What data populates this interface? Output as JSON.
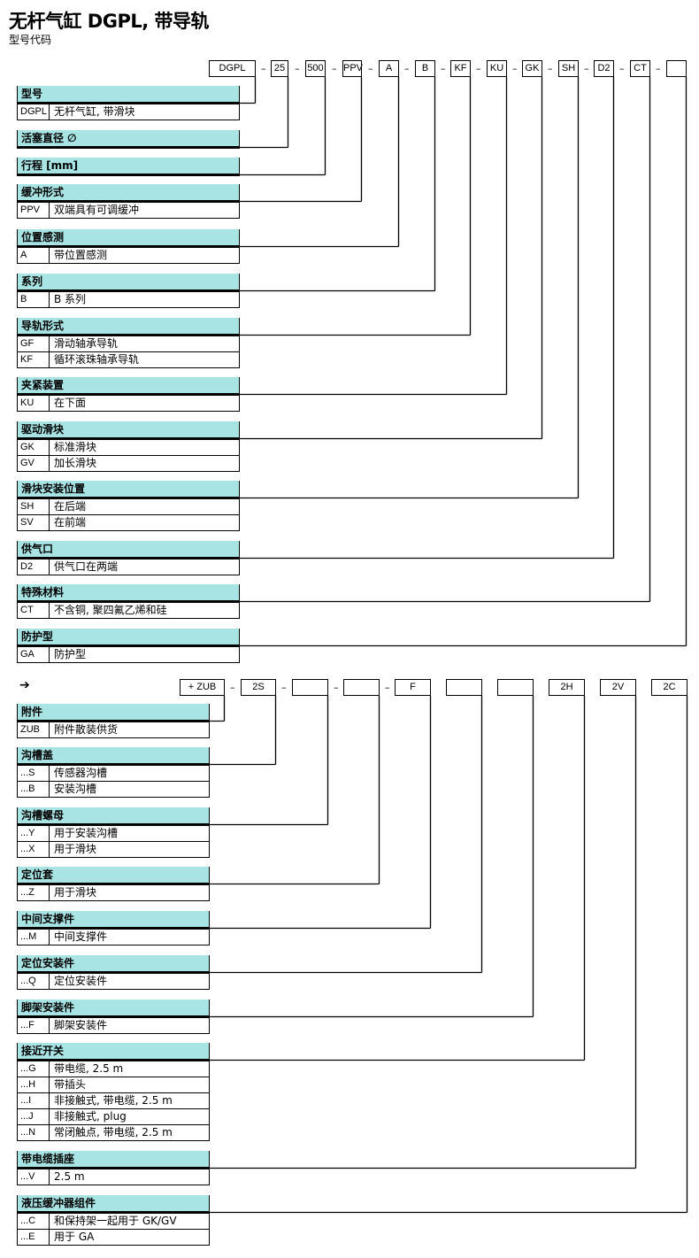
{
  "title": "无杆气缸 DGPL, 带导轨",
  "subtitle": "型号代码",
  "colors": {
    "header_bg": "#a8e4e4",
    "lines": "#000000"
  },
  "top": {
    "boxes": [
      "DGPL",
      "25",
      "500",
      "PPV",
      "A",
      "B",
      "KF",
      "KU",
      "GK",
      "SH",
      "D2",
      "CT",
      ""
    ],
    "separator": "–",
    "sections": [
      {
        "header": "型号",
        "rows": [
          {
            "code": "DGPL",
            "desc": "无杆气缸, 带滑块"
          }
        ]
      },
      {
        "header": "活塞直径 ∅",
        "rows": []
      },
      {
        "header": "行程 [mm]",
        "rows": []
      },
      {
        "header": "缓冲形式",
        "rows": [
          {
            "code": "PPV",
            "desc": "双端具有可调缓冲"
          }
        ]
      },
      {
        "header": "位置感测",
        "rows": [
          {
            "code": "A",
            "desc": "带位置感测"
          }
        ]
      },
      {
        "header": "系列",
        "rows": [
          {
            "code": "B",
            "desc": "B 系列"
          }
        ]
      },
      {
        "header": "导轨形式",
        "rows": [
          {
            "code": "GF",
            "desc": "滑动轴承导轨"
          },
          {
            "code": "KF",
            "desc": "循环滚珠轴承导轨"
          }
        ]
      },
      {
        "header": "夹紧装置",
        "rows": [
          {
            "code": "KU",
            "desc": "在下面"
          }
        ]
      },
      {
        "header": "驱动滑块",
        "rows": [
          {
            "code": "GK",
            "desc": "标准滑块"
          },
          {
            "code": "GV",
            "desc": "加长滑块"
          }
        ]
      },
      {
        "header": "滑块安装位置",
        "rows": [
          {
            "code": "SH",
            "desc": "在后端"
          },
          {
            "code": "SV",
            "desc": "在前端"
          }
        ]
      },
      {
        "header": "供气口",
        "rows": [
          {
            "code": "D2",
            "desc": "供气口在两端"
          }
        ]
      },
      {
        "header": "特殊材料",
        "rows": [
          {
            "code": "CT",
            "desc": "不含铜, 聚四氟乙烯和硅"
          }
        ]
      },
      {
        "header": "防护型",
        "rows": [
          {
            "code": "GA",
            "desc": "防护型"
          }
        ]
      }
    ]
  },
  "bottom": {
    "arrow_icon": "➔",
    "boxes": [
      "+ ZUB",
      "2S",
      "",
      "",
      "F",
      "",
      "",
      "2H",
      "2V",
      "2C"
    ],
    "separator": "–",
    "sections": [
      {
        "header": "附件",
        "rows": [
          {
            "code": "ZUB",
            "desc": "附件散装供货"
          }
        ]
      },
      {
        "header": "沟槽盖",
        "rows": [
          {
            "code": "...S",
            "desc": "传感器沟槽"
          },
          {
            "code": "...B",
            "desc": "安装沟槽"
          }
        ]
      },
      {
        "header": "沟槽螺母",
        "rows": [
          {
            "code": "...Y",
            "desc": "用于安装沟槽"
          },
          {
            "code": "...X",
            "desc": "用于滑块"
          }
        ]
      },
      {
        "header": "定位套",
        "rows": [
          {
            "code": "...Z",
            "desc": "用于滑块"
          }
        ]
      },
      {
        "header": "中间支撑件",
        "rows": [
          {
            "code": "...M",
            "desc": "中间支撑件"
          }
        ]
      },
      {
        "header": "定位安装件",
        "rows": [
          {
            "code": "...Q",
            "desc": "定位安装件"
          }
        ]
      },
      {
        "header": "脚架安装件",
        "rows": [
          {
            "code": "...F",
            "desc": "脚架安装件"
          }
        ]
      },
      {
        "header": "接近开关",
        "rows": [
          {
            "code": "...G",
            "desc": "带电缆, 2.5 m"
          },
          {
            "code": "...H",
            "desc": "带插头"
          },
          {
            "code": "...I",
            "desc": "非接触式, 带电缆, 2.5 m"
          },
          {
            "code": "...J",
            "desc": "非接触式, plug"
          },
          {
            "code": "...N",
            "desc": "常闭触点, 带电缆, 2.5 m"
          }
        ]
      },
      {
        "header": "带电缆插座",
        "rows": [
          {
            "code": "...V",
            "desc": "2.5 m"
          }
        ]
      },
      {
        "header": "液压缓冲器组件",
        "rows": [
          {
            "code": "...C",
            "desc": "和保持架一起用于 GK/GV"
          },
          {
            "code": "...E",
            "desc": "用于 GA"
          }
        ]
      }
    ]
  }
}
